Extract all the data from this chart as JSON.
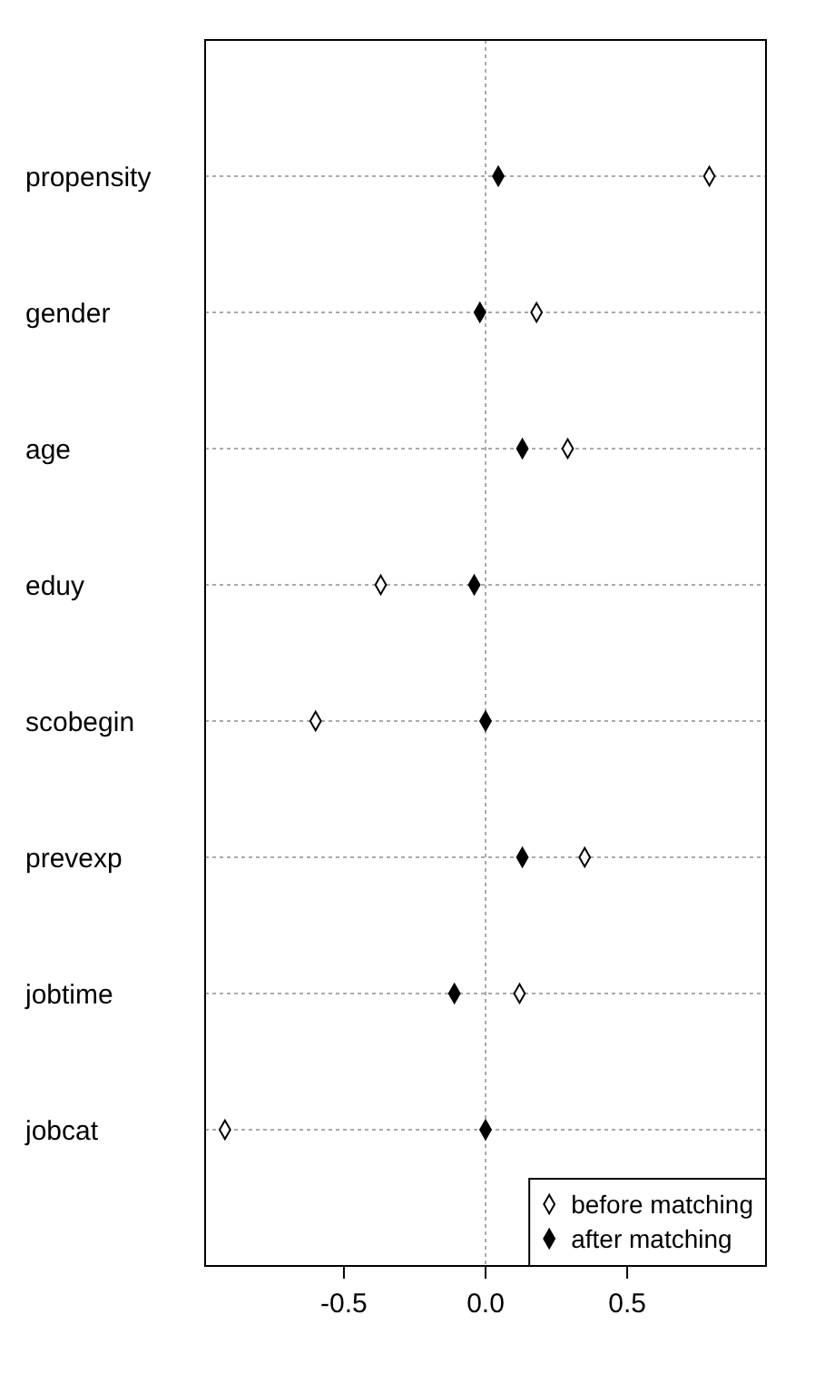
{
  "chart_data": {
    "type": "scatter",
    "orientation": "horizontal",
    "categories": [
      "propensity",
      "gender",
      "age",
      "eduy",
      "scobegin",
      "prevexp",
      "jobtime",
      "jobcat"
    ],
    "series": [
      {
        "name": "before matching",
        "color": "#ffffff",
        "values": [
          0.79,
          0.18,
          0.29,
          -0.37,
          -0.6,
          0.35,
          0.12,
          -0.92
        ]
      },
      {
        "name": "after matching",
        "color": "#000000",
        "values": [
          0.045,
          -0.02,
          0.13,
          -0.04,
          0,
          0.13,
          -0.11,
          0
        ]
      }
    ],
    "xlim": [
      -0.99,
      0.99
    ],
    "xticks": [
      {
        "value": -0.5,
        "label": "-0.5"
      },
      {
        "value": 0,
        "label": "0.0"
      },
      {
        "value": 0.5,
        "label": "0.5"
      }
    ],
    "grid": "y",
    "marker": "diamond",
    "legend": "bottom right",
    "ref_lines": [
      {
        "axis": "x",
        "value": 0
      }
    ]
  }
}
